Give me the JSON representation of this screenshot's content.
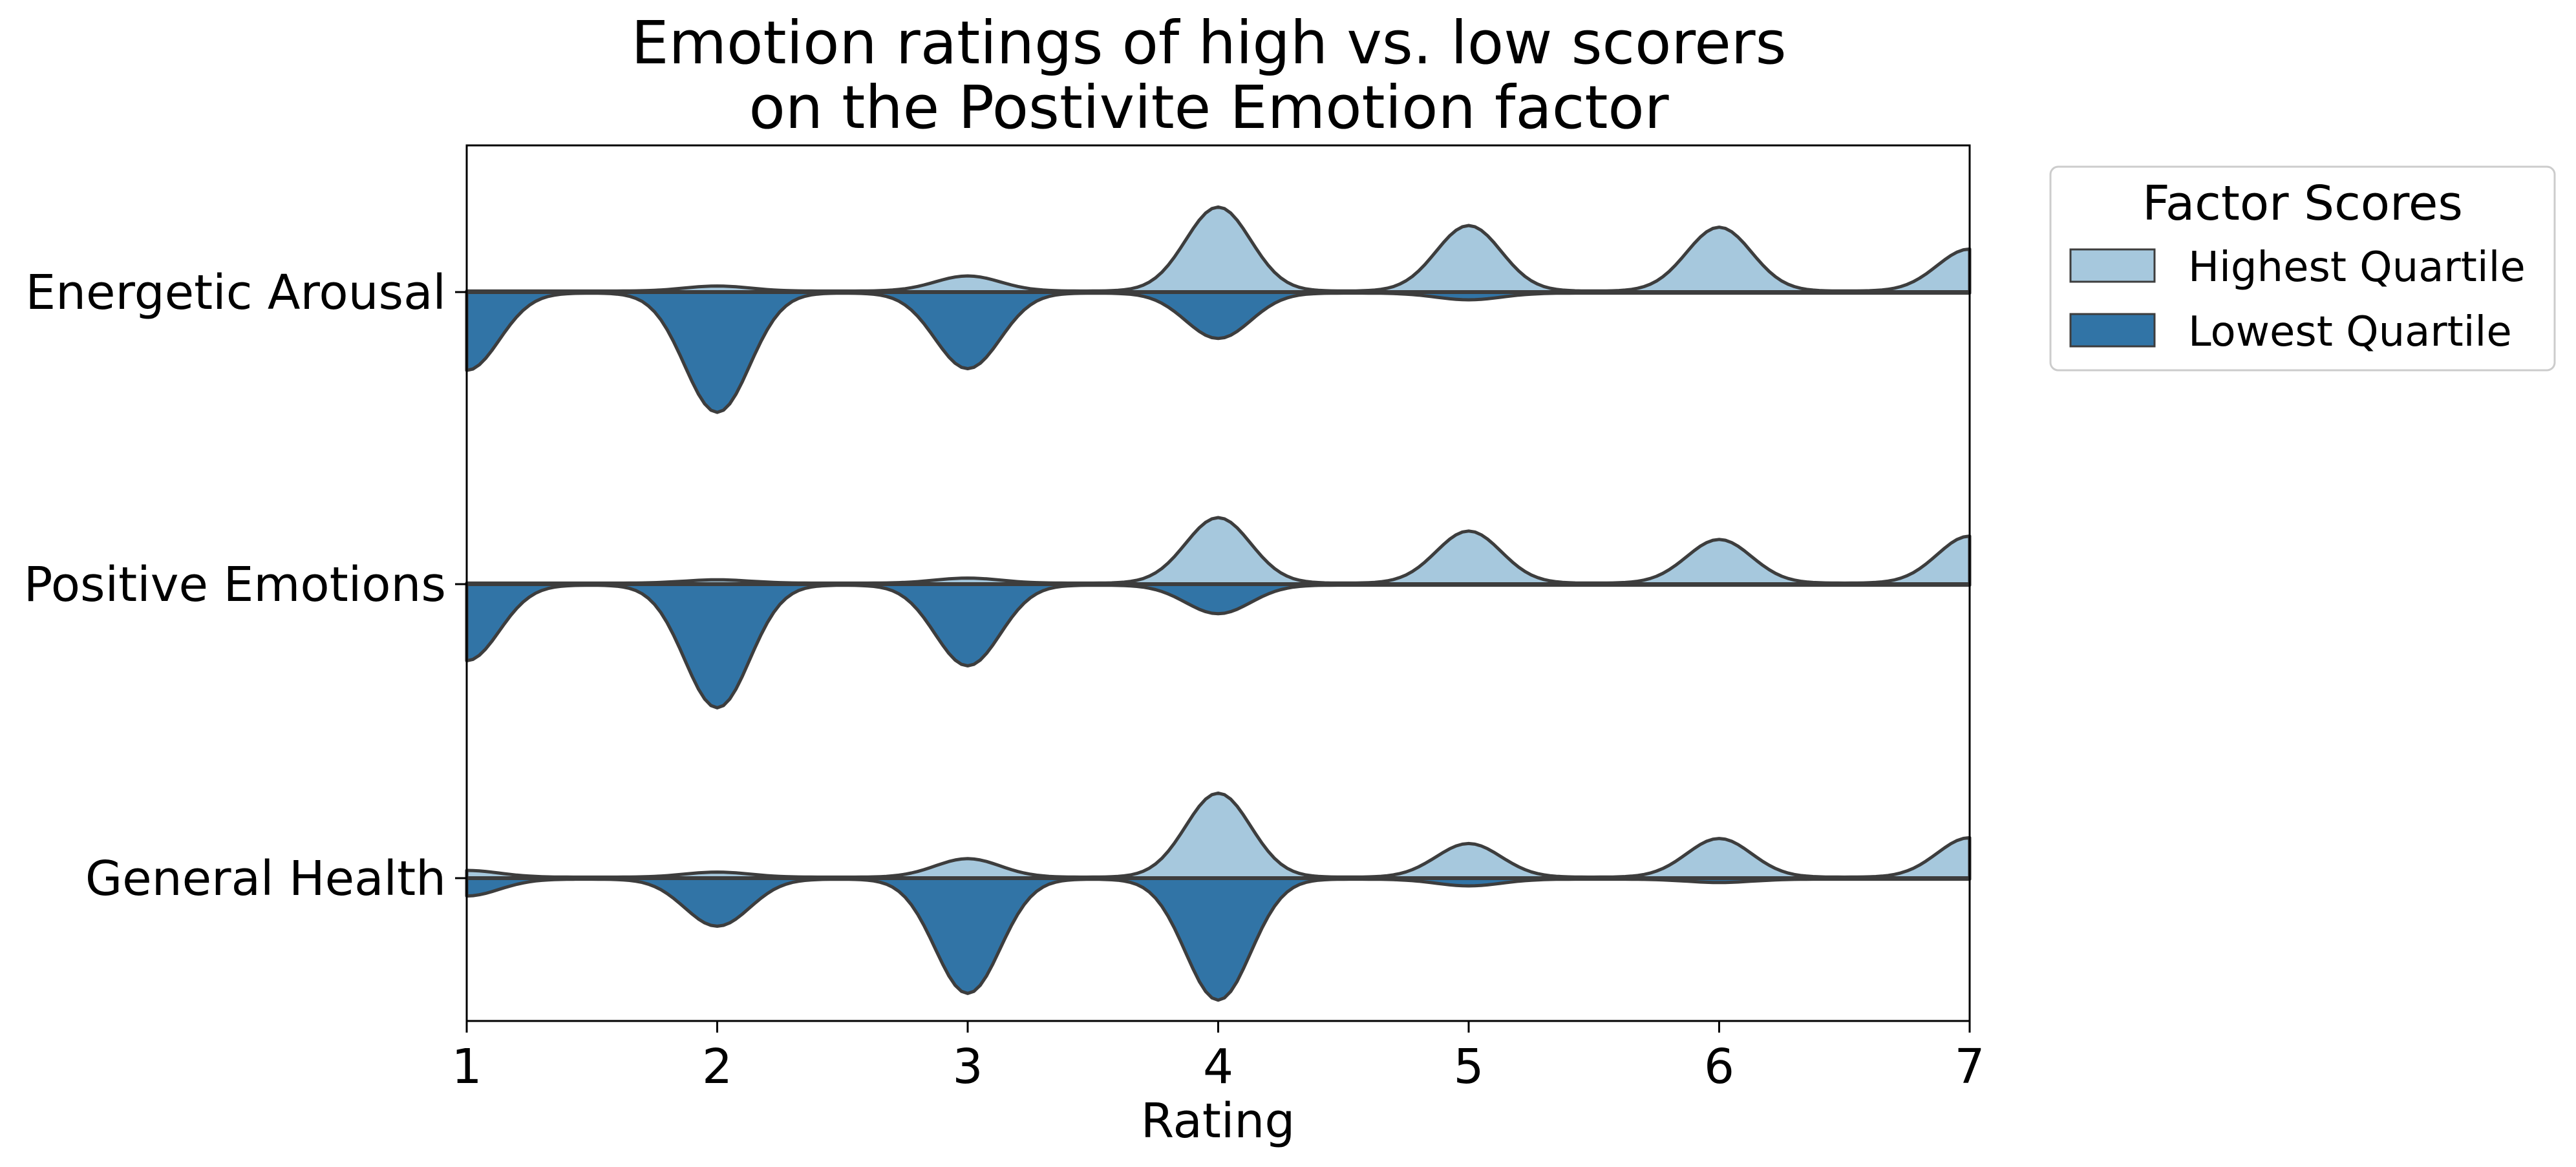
{
  "chart_data": {
    "type": "violin",
    "orientation": "horizontal",
    "split": true,
    "title_lines": [
      "Emotion ratings of high vs. low scorers",
      "on the Postivite Emotion factor"
    ],
    "xlabel": "Rating",
    "ylabel": "",
    "xlim": [
      1,
      7
    ],
    "x_ticks": [
      "1",
      "2",
      "3",
      "4",
      "5",
      "6",
      "7"
    ],
    "categories": [
      "Energetic Arousal",
      "Positive Emotions",
      "General Health"
    ],
    "legend": {
      "title": "Factor Scores",
      "position": "upper right, outside plot area",
      "entries": [
        "Highest Quartile",
        "Lowest Quartile"
      ]
    },
    "colors": {
      "highest": "#a6c8dd",
      "lowest": "#3174a6",
      "outline": "#3d3d3d"
    },
    "grid": false,
    "series": [
      {
        "name": "Highest Quartile",
        "side": "above",
        "densities": {
          "Energetic Arousal": [
            {
              "x": 2,
              "h": 0.06
            },
            {
              "x": 3,
              "h": 0.18
            },
            {
              "x": 4,
              "h": 1.0
            },
            {
              "x": 5,
              "h": 0.78
            },
            {
              "x": 6,
              "h": 0.76
            },
            {
              "x": 7,
              "h": 0.5,
              "edge": true
            }
          ],
          "Positive Emotions": [
            {
              "x": 2,
              "h": 0.04
            },
            {
              "x": 3,
              "h": 0.06
            },
            {
              "x": 4,
              "h": 0.78
            },
            {
              "x": 5,
              "h": 0.62
            },
            {
              "x": 6,
              "h": 0.52
            },
            {
              "x": 7,
              "h": 0.56,
              "edge": true
            }
          ],
          "General Health": [
            {
              "x": 1,
              "h": 0.08,
              "edge": true
            },
            {
              "x": 2,
              "h": 0.06
            },
            {
              "x": 3,
              "h": 0.22
            },
            {
              "x": 4,
              "h": 1.0
            },
            {
              "x": 5,
              "h": 0.4
            },
            {
              "x": 6,
              "h": 0.46
            },
            {
              "x": 7,
              "h": 0.47,
              "edge": true
            }
          ]
        }
      },
      {
        "name": "Lowest Quartile",
        "side": "below",
        "densities": {
          "Energetic Arousal": [
            {
              "x": 1,
              "h": 0.92,
              "edge": true
            },
            {
              "x": 2,
              "h": 1.42
            },
            {
              "x": 3,
              "h": 0.9
            },
            {
              "x": 4,
              "h": 0.54
            },
            {
              "x": 5,
              "h": 0.08
            }
          ],
          "Positive Emotions": [
            {
              "x": 1,
              "h": 0.9,
              "edge": true
            },
            {
              "x": 2,
              "h": 1.46
            },
            {
              "x": 3,
              "h": 0.96
            },
            {
              "x": 4,
              "h": 0.34
            }
          ],
          "General Health": [
            {
              "x": 1,
              "h": 0.2,
              "edge": true
            },
            {
              "x": 2,
              "h": 0.56
            },
            {
              "x": 3,
              "h": 1.36
            },
            {
              "x": 4,
              "h": 1.44
            },
            {
              "x": 5,
              "h": 0.08
            },
            {
              "x": 6,
              "h": 0.04
            }
          ]
        }
      }
    ]
  }
}
